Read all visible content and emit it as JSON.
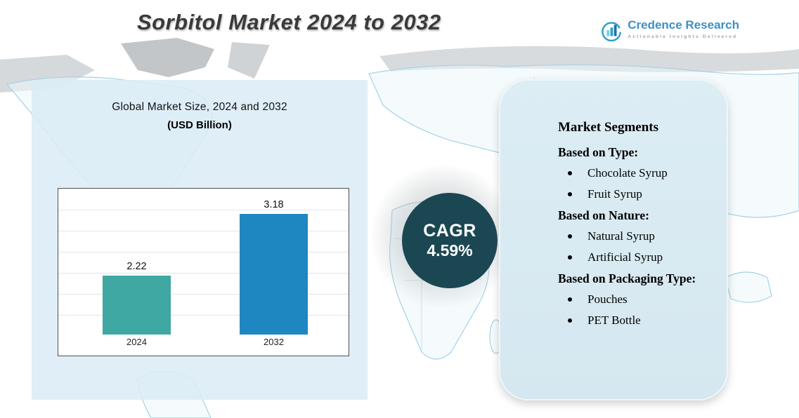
{
  "title": "Sorbitol Market 2024 to 2032",
  "logo": {
    "name": "Credence Research",
    "tagline": "Actionable Insights Delivered",
    "icon": "bar-chart-swoosh-icon"
  },
  "chart_data": {
    "type": "bar",
    "title": "Global Market Size, 2024 and 2032",
    "subtitle": "(USD Billion)",
    "categories": [
      "2024",
      "2032"
    ],
    "values": [
      2.22,
      3.18
    ],
    "bar_colors": [
      "#3FA8A2",
      "#1E87C1"
    ],
    "ylim": [
      1.3,
      3.6
    ],
    "grid": true,
    "legend": "none",
    "ylabel": "",
    "xlabel": ""
  },
  "cagr": {
    "label": "CAGR",
    "value": "4.59%"
  },
  "segments": {
    "heading": "Market Segments",
    "groups": [
      {
        "label": "Based on Type:",
        "items": [
          "Chocolate Syrup",
          "Fruit Syrup"
        ]
      },
      {
        "label": "Based on Nature:",
        "items": [
          "Natural Syrup",
          "Artificial Syrup"
        ]
      },
      {
        "label": "Based on Packaging Type:",
        "items": [
          "Pouches",
          "PET Bottle"
        ]
      }
    ]
  },
  "colors": {
    "bar_2024": "#3FA8A2",
    "bar_2032": "#1E87C1",
    "cagr_circle": "#1B4753",
    "panel_blue": "#D9EAF2",
    "map_outline": "#A6D2E6"
  }
}
